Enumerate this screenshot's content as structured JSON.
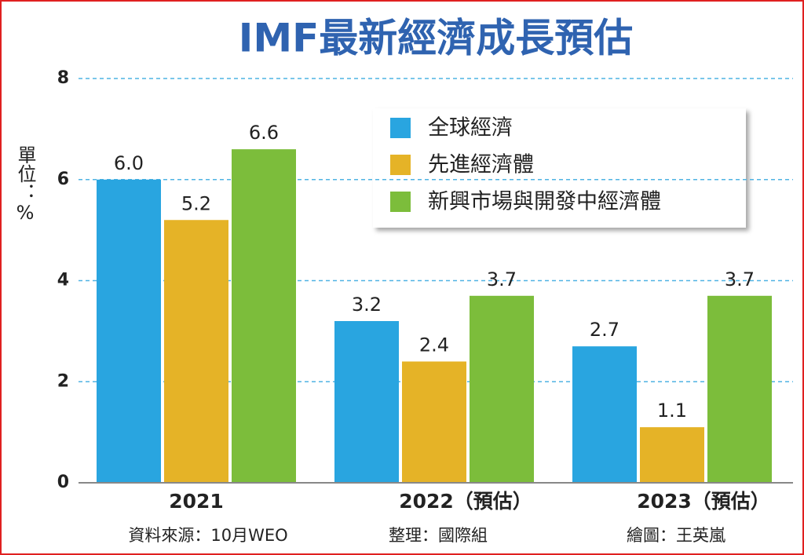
{
  "chart_data": {
    "type": "bar",
    "title": "IMF最新經濟成長預估",
    "y_label": "單位：%",
    "categories": [
      "2021",
      "2022（預估）",
      "2023（預估）"
    ],
    "series": [
      {
        "name": "全球經濟",
        "color": "#29a5e0",
        "values": [
          6.0,
          3.2,
          2.7
        ],
        "value_labels": [
          "6.0",
          "3.2",
          "2.7"
        ]
      },
      {
        "name": "先進經濟體",
        "color": "#e5b327",
        "values": [
          5.2,
          2.4,
          1.1
        ],
        "value_labels": [
          "5.2",
          "2.4",
          "1.1"
        ]
      },
      {
        "name": "新興市場與開發中經濟體",
        "color": "#7cbd3b",
        "values": [
          6.6,
          3.7,
          3.7
        ],
        "value_labels": [
          "6.6",
          "3.7",
          "3.7"
        ]
      }
    ],
    "ylim": [
      0,
      8
    ],
    "yticks": [
      0,
      2,
      4,
      6,
      8
    ],
    "grid": true,
    "notes": [
      "資料來源：10月WEO",
      "整理：國際組",
      "繪圖：王英嵐"
    ]
  }
}
